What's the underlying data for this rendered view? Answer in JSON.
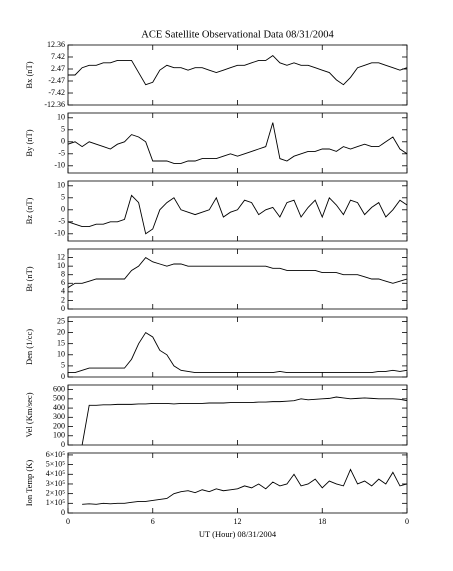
{
  "chart_data": [
    {
      "type": "line",
      "title": "ACE Satellite Observational Data  08/31/2004",
      "ylabel": "Bx (nT)",
      "color": "#000000",
      "x": [
        0,
        0.5,
        1,
        1.5,
        2,
        2.5,
        3,
        3.5,
        4,
        4.5,
        5,
        5.5,
        6,
        6.5,
        7,
        7.5,
        8,
        8.5,
        9,
        9.5,
        10,
        10.5,
        11,
        11.5,
        12,
        12.5,
        13,
        13.5,
        14,
        14.5,
        15,
        15.5,
        16,
        16.5,
        17,
        17.5,
        18,
        18.5,
        19,
        19.5,
        20,
        20.5,
        21,
        21.5,
        22,
        22.5,
        23,
        23.5,
        24
      ],
      "values": [
        0,
        0,
        3,
        4,
        4,
        5,
        5,
        6,
        6,
        6,
        1,
        -4,
        -3,
        2,
        4,
        3,
        3,
        2,
        3,
        3,
        2,
        1,
        2,
        3,
        4,
        4,
        5,
        6,
        6,
        8,
        5,
        4,
        5,
        4,
        4,
        3,
        2,
        1,
        -2,
        -4,
        -1,
        3,
        4,
        5,
        5,
        4,
        3,
        2,
        3
      ],
      "xlim": [
        0,
        24
      ],
      "xticks": [
        0,
        6,
        12,
        18,
        24
      ],
      "ylim": [
        -12.36,
        12.36
      ],
      "yticks": [
        12.36,
        7.42,
        2.47,
        -2.47,
        -7.42,
        -12.36
      ]
    },
    {
      "type": "line",
      "ylabel": "By (nT)",
      "color": "#000000",
      "x": [
        0,
        0.5,
        1,
        1.5,
        2,
        2.5,
        3,
        3.5,
        4,
        4.5,
        5,
        5.5,
        6,
        6.5,
        7,
        7.5,
        8,
        8.5,
        9,
        9.5,
        10,
        10.5,
        11,
        11.5,
        12,
        12.5,
        13,
        13.5,
        14,
        14.5,
        15,
        15.5,
        16,
        16.5,
        17,
        17.5,
        18,
        18.5,
        19,
        19.5,
        20,
        20.5,
        21,
        21.5,
        22,
        22.5,
        23,
        23.5,
        24
      ],
      "values": [
        -1,
        0,
        -2,
        0,
        -1,
        -2,
        -3,
        -1,
        0,
        3,
        2,
        0,
        -8,
        -8,
        -8,
        -9,
        -9,
        -8,
        -8,
        -7,
        -7,
        -7,
        -6,
        -5,
        -6,
        -5,
        -4,
        -3,
        -2,
        8,
        -7,
        -8,
        -6,
        -5,
        -4,
        -4,
        -3,
        -3,
        -4,
        -2,
        -3,
        -2,
        -1,
        -2,
        -2,
        0,
        2,
        -3,
        -5
      ],
      "xlim": [
        0,
        24
      ],
      "xticks": [
        0,
        6,
        12,
        18,
        24
      ],
      "ylim": [
        -13,
        12
      ],
      "yticks": [
        10,
        5,
        0,
        -5,
        -10
      ]
    },
    {
      "type": "line",
      "ylabel": "Bz (nT)",
      "color": "#000000",
      "x": [
        0,
        0.5,
        1,
        1.5,
        2,
        2.5,
        3,
        3.5,
        4,
        4.5,
        5,
        5.5,
        6,
        6.5,
        7,
        7.5,
        8,
        8.5,
        9,
        9.5,
        10,
        10.5,
        11,
        11.5,
        12,
        12.5,
        13,
        13.5,
        14,
        14.5,
        15,
        15.5,
        16,
        16.5,
        17,
        17.5,
        18,
        18.5,
        19,
        19.5,
        20,
        20.5,
        21,
        21.5,
        22,
        22.5,
        23,
        23.5,
        24
      ],
      "values": [
        -5,
        -6,
        -7,
        -7,
        -6,
        -6,
        -5,
        -5,
        -4,
        6,
        3,
        -10,
        -8,
        0,
        3,
        5,
        0,
        -1,
        -2,
        -1,
        0,
        5,
        -3,
        -1,
        0,
        4,
        3,
        -2,
        0,
        1,
        -3,
        3,
        4,
        -3,
        1,
        4,
        -3,
        5,
        2,
        -2,
        4,
        3,
        -2,
        1,
        3,
        -3,
        0,
        4,
        2
      ],
      "xlim": [
        0,
        24
      ],
      "xticks": [
        0,
        6,
        12,
        18,
        24
      ],
      "ylim": [
        -13,
        12
      ],
      "yticks": [
        10,
        5,
        0,
        -5,
        -10
      ]
    },
    {
      "type": "line",
      "ylabel": "Bt (nT)",
      "color": "#000000",
      "x": [
        0,
        0.5,
        1,
        1.5,
        2,
        2.5,
        3,
        3.5,
        4,
        4.5,
        5,
        5.5,
        6,
        6.5,
        7,
        7.5,
        8,
        8.5,
        9,
        9.5,
        10,
        10.5,
        11,
        11.5,
        12,
        12.5,
        13,
        13.5,
        14,
        14.5,
        15,
        15.5,
        16,
        16.5,
        17,
        17.5,
        18,
        18.5,
        19,
        19.5,
        20,
        20.5,
        21,
        21.5,
        22,
        22.5,
        23,
        23.5,
        24
      ],
      "values": [
        5,
        6,
        6,
        6.5,
        7,
        7,
        7,
        7,
        7,
        9,
        10,
        12,
        11,
        10.5,
        10,
        10.5,
        10.5,
        10,
        10,
        10,
        10,
        10,
        10,
        10,
        10,
        10,
        10,
        10,
        10,
        9.5,
        9.5,
        9,
        9,
        9,
        9,
        9,
        8.5,
        8.5,
        8.5,
        8,
        8,
        8,
        7.5,
        7,
        7,
        6.5,
        6,
        6.5,
        7
      ],
      "xlim": [
        0,
        24
      ],
      "xticks": [
        0,
        6,
        12,
        18,
        24
      ],
      "ylim": [
        0,
        14
      ],
      "yticks": [
        0,
        2,
        4,
        6,
        8,
        10,
        12
      ]
    },
    {
      "type": "line",
      "ylabel": "Den (1/cc)",
      "color": "#000000",
      "x": [
        0,
        0.5,
        1,
        1.5,
        2,
        2.5,
        3,
        3.5,
        4,
        4.5,
        5,
        5.5,
        6,
        6.5,
        7,
        7.5,
        8,
        8.5,
        9,
        9.5,
        10,
        10.5,
        11,
        11.5,
        12,
        12.5,
        13,
        13.5,
        14,
        14.5,
        15,
        15.5,
        16,
        16.5,
        17,
        17.5,
        18,
        18.5,
        19,
        19.5,
        20,
        20.5,
        21,
        21.5,
        22,
        22.5,
        23,
        23.5,
        24
      ],
      "values": [
        2,
        2,
        3,
        4,
        4,
        4,
        4,
        4,
        4,
        8,
        15,
        20,
        18,
        12,
        10,
        5,
        3,
        2.5,
        2,
        2,
        2,
        2,
        2,
        2,
        2,
        2,
        2,
        2,
        2,
        2,
        2.5,
        2,
        2,
        2,
        2,
        2,
        2,
        2,
        2,
        2,
        2,
        2,
        2,
        2,
        2.5,
        2.5,
        3,
        2.5,
        3
      ],
      "xlim": [
        0,
        24
      ],
      "xticks": [
        0,
        6,
        12,
        18,
        24
      ],
      "ylim": [
        0,
        27
      ],
      "yticks": [
        0,
        5,
        10,
        15,
        20,
        25
      ]
    },
    {
      "type": "line",
      "ylabel": "Vel (Km/sec)",
      "color": "#000000",
      "x": [
        0,
        0.5,
        1,
        1.5,
        2,
        2.5,
        3,
        3.5,
        4,
        4.5,
        5,
        5.5,
        6,
        6.5,
        7,
        7.5,
        8,
        8.5,
        9,
        9.5,
        10,
        10.5,
        11,
        11.5,
        12,
        12.5,
        13,
        13.5,
        14,
        14.5,
        15,
        15.5,
        16,
        16.5,
        17,
        17.5,
        18,
        18.5,
        19,
        19.5,
        20,
        20.5,
        21,
        21.5,
        22,
        22.5,
        23,
        23.5,
        24
      ],
      "values": [
        null,
        null,
        0,
        430,
        430,
        435,
        435,
        440,
        440,
        440,
        445,
        445,
        450,
        450,
        450,
        445,
        450,
        450,
        450,
        450,
        455,
        455,
        455,
        460,
        460,
        460,
        460,
        465,
        465,
        470,
        470,
        475,
        480,
        500,
        490,
        495,
        500,
        505,
        520,
        510,
        500,
        505,
        510,
        505,
        500,
        500,
        500,
        495,
        480
      ],
      "xlim": [
        0,
        24
      ],
      "xticks": [
        0,
        6,
        12,
        18,
        24
      ],
      "ylim": [
        0,
        650
      ],
      "yticks": [
        0,
        100,
        200,
        300,
        400,
        500,
        600
      ]
    },
    {
      "type": "line",
      "ylabel": "Ion Temp (K)",
      "xlabel": "UT (Hour)  08/31/2004",
      "color": "#000000",
      "x": [
        0,
        0.5,
        1,
        1.5,
        2,
        2.5,
        3,
        3.5,
        4,
        4.5,
        5,
        5.5,
        6,
        6.5,
        7,
        7.5,
        8,
        8.5,
        9,
        9.5,
        10,
        10.5,
        11,
        11.5,
        12,
        12.5,
        13,
        13.5,
        14,
        14.5,
        15,
        15.5,
        16,
        16.5,
        17,
        17.5,
        18,
        18.5,
        19,
        19.5,
        20,
        20.5,
        21,
        21.5,
        22,
        22.5,
        23,
        23.5,
        24
      ],
      "values": [
        null,
        null,
        90000,
        95000,
        90000,
        100000,
        95000,
        100000,
        100000,
        110000,
        120000,
        120000,
        130000,
        140000,
        150000,
        200000,
        220000,
        230000,
        210000,
        240000,
        220000,
        250000,
        230000,
        240000,
        250000,
        280000,
        260000,
        300000,
        250000,
        320000,
        280000,
        300000,
        400000,
        280000,
        300000,
        350000,
        260000,
        330000,
        300000,
        280000,
        450000,
        300000,
        330000,
        280000,
        350000,
        300000,
        420000,
        280000,
        300000
      ],
      "xlim": [
        0,
        24
      ],
      "xticks": [
        0,
        6,
        12,
        18,
        {
          "value": 24,
          "label": "0"
        }
      ],
      "ylim": [
        0,
        620000
      ],
      "yticks": [
        0,
        {
          "value": 100000,
          "label": "1×10⁵"
        },
        {
          "value": 200000,
          "label": "2×10⁵"
        },
        {
          "value": 300000,
          "label": "3×10⁵"
        },
        {
          "value": 400000,
          "label": "4×10⁵"
        },
        {
          "value": 500000,
          "label": "5×10⁵"
        },
        {
          "value": 600000,
          "label": "6×10⁵"
        }
      ]
    }
  ]
}
